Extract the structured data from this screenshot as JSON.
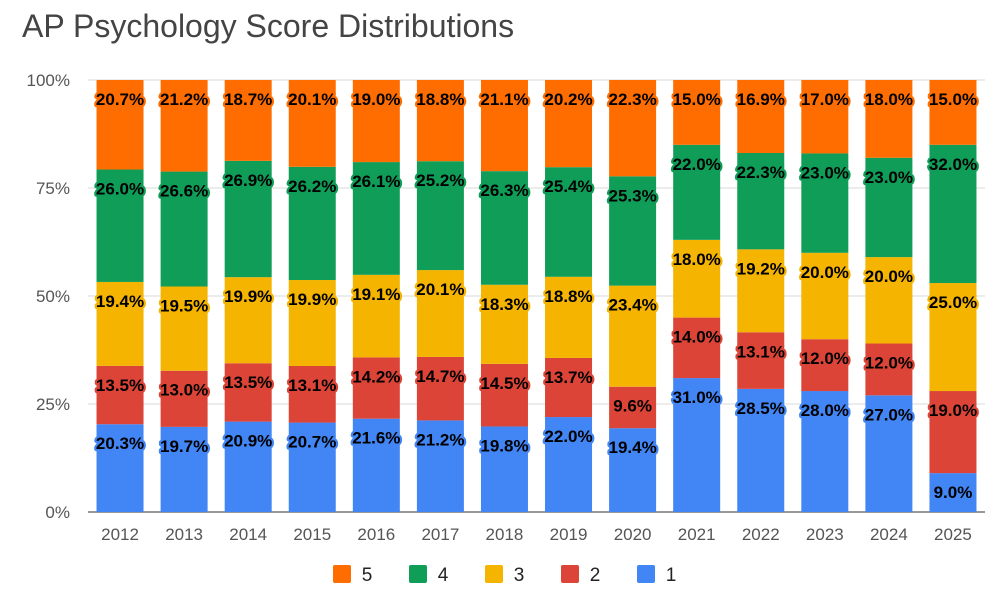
{
  "chart_data": {
    "type": "bar",
    "stacked": true,
    "percent_stacked": true,
    "title": "AP Psychology Score Distributions",
    "xlabel": "",
    "ylabel": "",
    "ylim": [
      0,
      100
    ],
    "y_ticks": [
      "0%",
      "25%",
      "50%",
      "75%",
      "100%"
    ],
    "y_tick_values": [
      0,
      25,
      50,
      75,
      100
    ],
    "grid": true,
    "legend_position": "bottom",
    "categories": [
      "2012",
      "2013",
      "2014",
      "2015",
      "2016",
      "2017",
      "2018",
      "2019",
      "2020",
      "2021",
      "2022",
      "2023",
      "2024",
      "2025"
    ],
    "series": [
      {
        "name": "1",
        "color": "#4285f4",
        "values": [
          20.3,
          19.7,
          20.9,
          20.7,
          21.6,
          21.2,
          19.8,
          22.0,
          19.4,
          31.0,
          28.5,
          28.0,
          27.0,
          9.0
        ],
        "labels": [
          "20.3%",
          "19.7%",
          "20.9%",
          "20.7%",
          "21.6%",
          "21.2%",
          "19.8%",
          "22.0%",
          "19.4%",
          "31.0%",
          "28.5%",
          "28.0%",
          "27.0%",
          "9.0%"
        ]
      },
      {
        "name": "2",
        "color": "#db4437",
        "values": [
          13.5,
          13.0,
          13.5,
          13.1,
          14.2,
          14.7,
          14.5,
          13.7,
          9.6,
          14.0,
          13.1,
          12.0,
          12.0,
          19.0
        ],
        "labels": [
          "13.5%",
          "13.0%",
          "13.5%",
          "13.1%",
          "14.2%",
          "14.7%",
          "14.5%",
          "13.7%",
          "9.6%",
          "14.0%",
          "13.1%",
          "12.0%",
          "12.0%",
          "19.0%"
        ]
      },
      {
        "name": "3",
        "color": "#f4b400",
        "values": [
          19.4,
          19.5,
          19.9,
          19.9,
          19.1,
          20.1,
          18.3,
          18.8,
          23.4,
          18.0,
          19.2,
          20.0,
          20.0,
          25.0
        ],
        "labels": [
          "19.4%",
          "19.5%",
          "19.9%",
          "19.9%",
          "19.1%",
          "20.1%",
          "18.3%",
          "18.8%",
          "23.4%",
          "18.0%",
          "19.2%",
          "20.0%",
          "20.0%",
          "25.0%"
        ]
      },
      {
        "name": "4",
        "color": "#0f9d58",
        "values": [
          26.0,
          26.6,
          26.9,
          26.2,
          26.1,
          25.2,
          26.3,
          25.4,
          25.3,
          22.0,
          22.3,
          23.0,
          23.0,
          32.0
        ],
        "labels": [
          "26.0%",
          "26.6%",
          "26.9%",
          "26.2%",
          "26.1%",
          "25.2%",
          "26.3%",
          "25.4%",
          "25.3%",
          "22.0%",
          "22.3%",
          "23.0%",
          "23.0%",
          "32.0%"
        ]
      },
      {
        "name": "5",
        "color": "#ff6d01",
        "values": [
          20.7,
          21.2,
          18.7,
          20.1,
          19.0,
          18.8,
          21.1,
          20.2,
          22.3,
          15.0,
          16.9,
          17.0,
          18.0,
          15.0
        ],
        "labels": [
          "20.7%",
          "21.2%",
          "18.7%",
          "20.1%",
          "19.0%",
          "18.8%",
          "21.1%",
          "20.2%",
          "22.3%",
          "15.0%",
          "16.9%",
          "17.0%",
          "18.0%",
          "15.0%"
        ]
      }
    ],
    "legend_order": [
      "5",
      "4",
      "3",
      "2",
      "1"
    ]
  }
}
